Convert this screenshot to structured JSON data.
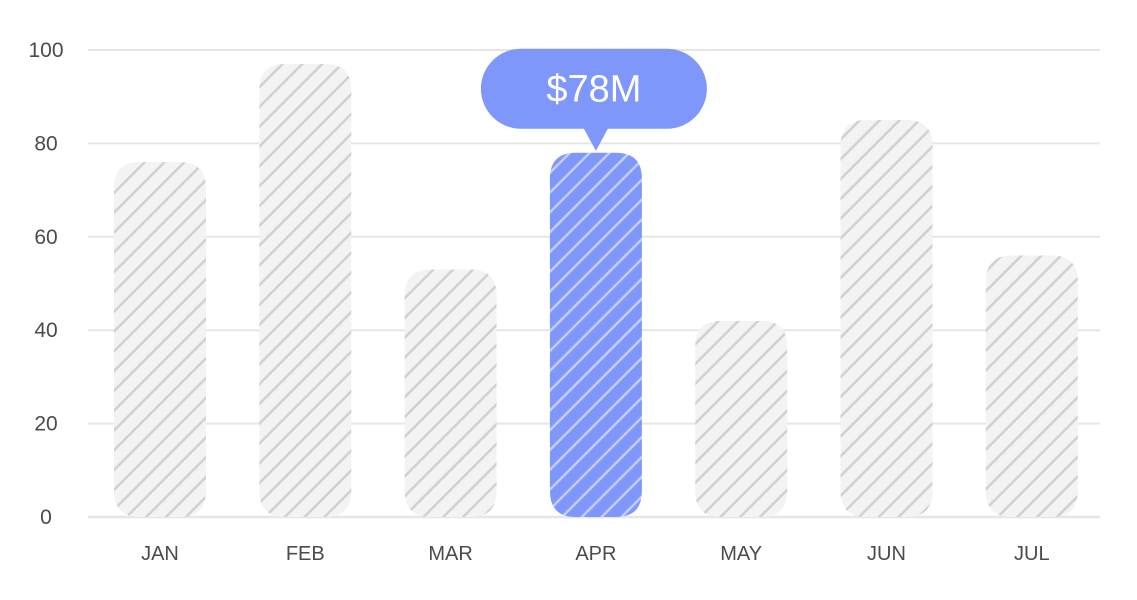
{
  "chart_data": {
    "type": "bar",
    "categories": [
      "JAN",
      "FEB",
      "MAR",
      "APR",
      "MAY",
      "JUN",
      "JUL"
    ],
    "values": [
      76,
      97,
      53,
      78,
      42,
      85,
      56
    ],
    "ylim": [
      0,
      100
    ],
    "yticks": [
      "0",
      "20",
      "40",
      "60",
      "80",
      "100"
    ],
    "highlight_index": 3,
    "tooltip": {
      "label": "$78M"
    },
    "grid": true,
    "colors": {
      "bar": "#f3f3f3",
      "bar_hatch": "#cfcfcf",
      "highlight": "#7f97fb",
      "highlight_hatch": "#c5d0fd",
      "grid": "#e6e6e6",
      "tooltip": "#7f97fb"
    }
  }
}
